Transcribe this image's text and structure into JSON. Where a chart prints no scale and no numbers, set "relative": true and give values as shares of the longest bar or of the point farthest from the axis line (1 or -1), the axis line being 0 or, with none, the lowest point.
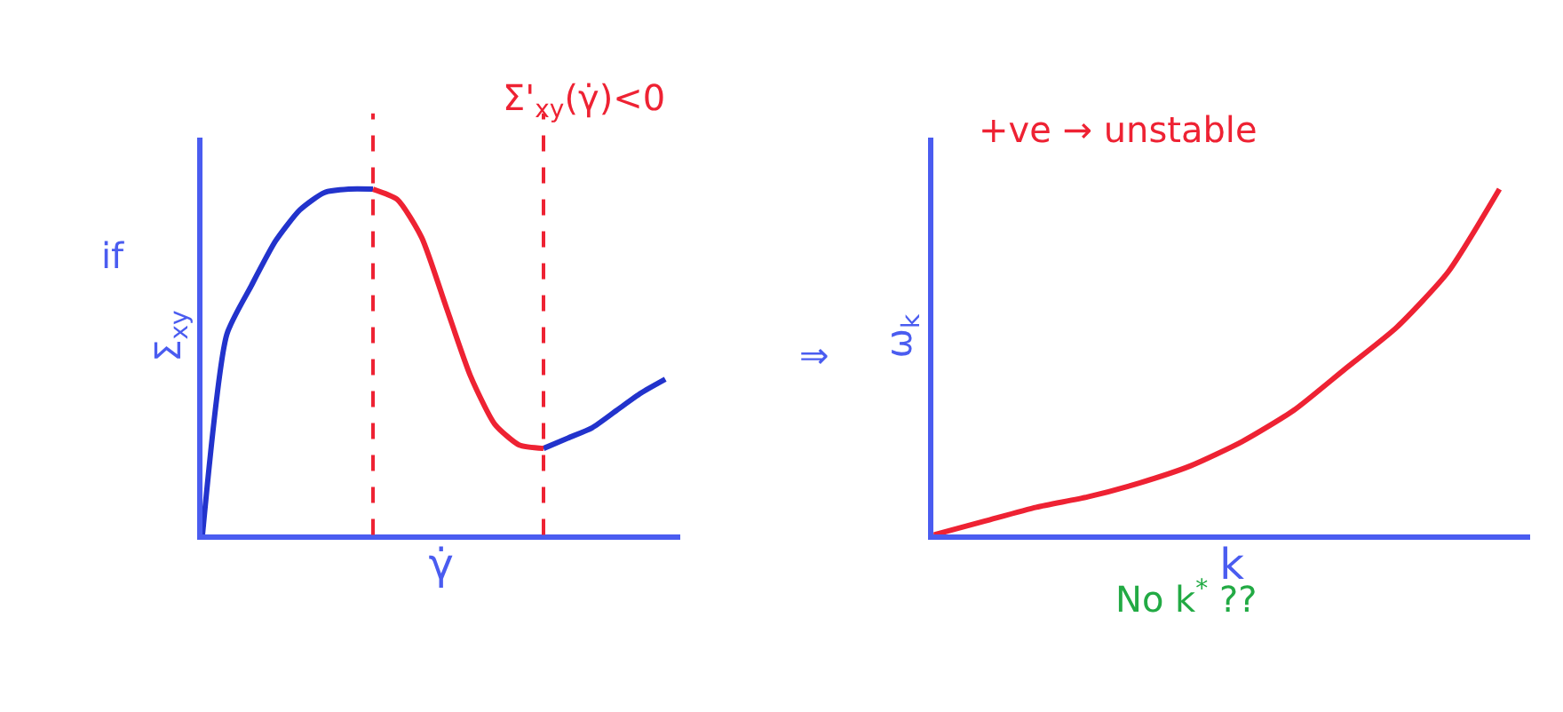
{
  "chart_data": [
    {
      "type": "line",
      "relative": true,
      "ylabel": "Σ$_{xy}$",
      "xlabel": "γ̇",
      "categories": [
        null,
        null,
        null,
        null,
        null,
        null,
        null,
        null,
        null,
        null,
        null,
        null,
        null,
        null,
        null,
        null,
        null,
        null,
        null,
        null
      ],
      "marker": "none",
      "line_style": "solid",
      "series": [
        {
          "color": "#2233cc",
          "values": [
            0,
            0.58,
            0.72,
            0.85,
            0.94,
            0.99,
            1.0,
            1.0,
            null,
            null,
            null,
            null,
            null,
            null,
            0.25,
            0.28,
            0.31,
            0.36,
            0.41,
            0.45
          ]
        },
        {
          "color": "#ee2233",
          "values": [
            null,
            null,
            null,
            null,
            null,
            null,
            null,
            1.0,
            0.97,
            0.86,
            0.66,
            0.46,
            0.32,
            0.26,
            0.25,
            null,
            null,
            null,
            null,
            null
          ]
        }
      ],
      "annotations": [
        "Σ'$_{xy}$(γ̇)<0",
        "if",
        "⇒"
      ]
    },
    {
      "type": "line",
      "relative": true,
      "ylabel": "ω$_{k}$",
      "xlabel": "k",
      "categories": [
        null,
        null,
        null,
        null,
        null,
        null,
        null,
        null,
        null,
        null,
        null,
        null
      ],
      "marker": "none",
      "line_style": "solid",
      "series": [
        {
          "color": "#ee2233",
          "values": [
            0,
            0.04,
            0.08,
            0.11,
            0.15,
            0.2,
            0.27,
            0.36,
            0.48,
            0.6,
            0.76,
            1.0
          ]
        }
      ],
      "annotations": [
        "+ve → unstable",
        "No k$^{*}$ ??"
      ]
    }
  ]
}
